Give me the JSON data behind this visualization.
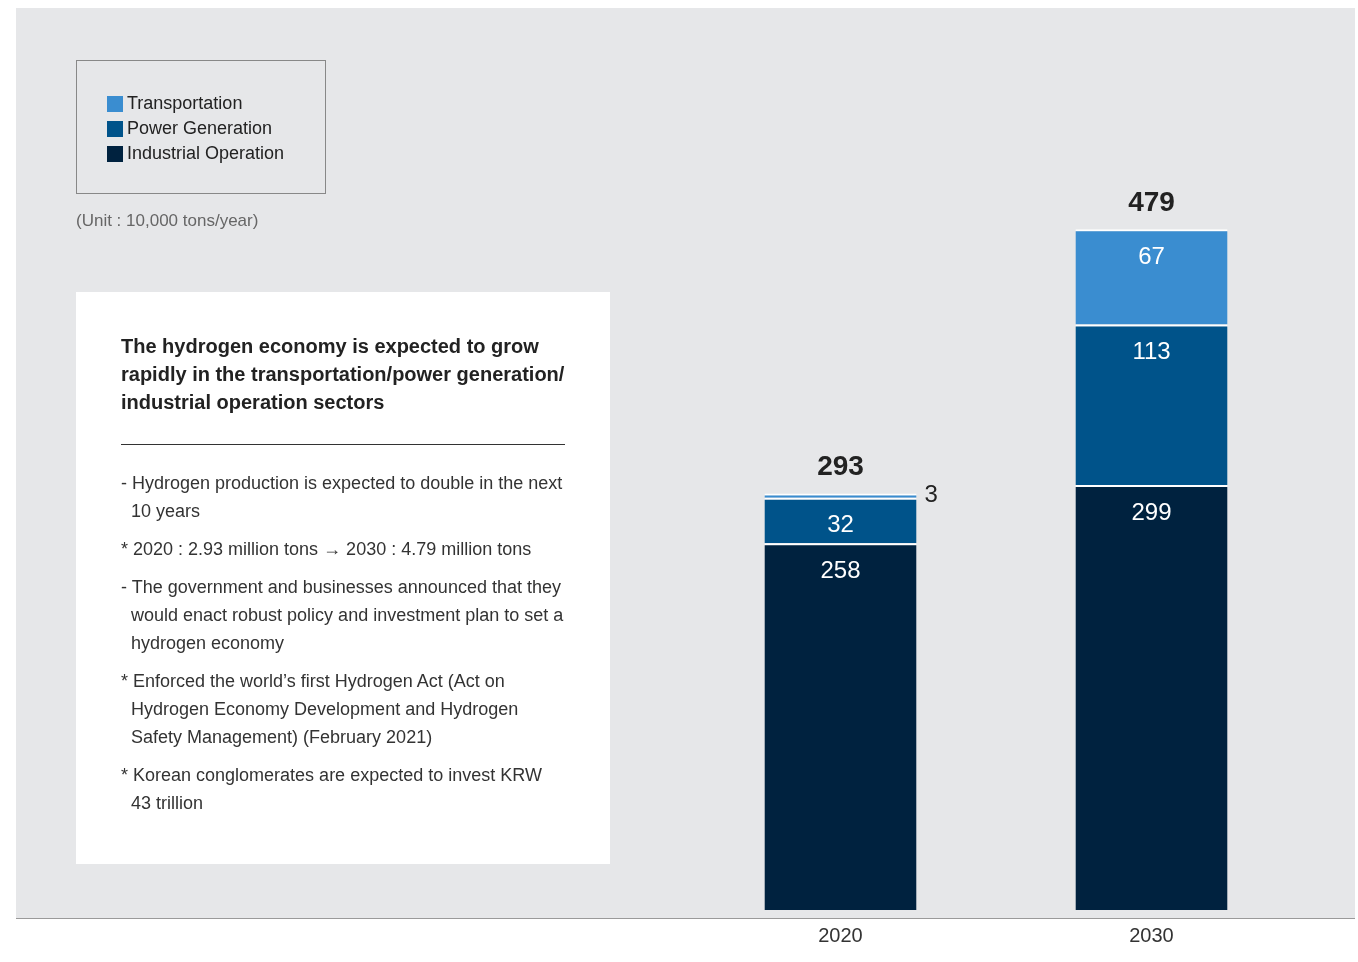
{
  "chart_data": {
    "type": "bar",
    "stacked": true,
    "title": "The hydrogen economy is expected to grow rapidly in the transportation/power generation/ industrial operation sectors",
    "categories": [
      "2020",
      "2030"
    ],
    "series": [
      {
        "name": "Industrial Operation",
        "color": "#00223f",
        "values": [
          258,
          299
        ]
      },
      {
        "name": "Power Generation",
        "color": "#00538a",
        "values": [
          32,
          113
        ]
      },
      {
        "name": "Transportation",
        "color": "#3a8dd0",
        "values": [
          3,
          67
        ]
      }
    ],
    "data_labels": true,
    "totals": [
      "293",
      "479"
    ],
    "legend": "top left",
    "annotations": [
      "(Unit : 10,000 tons/year)",
      "- Hydrogen production is expected to double in the next 10 years",
      "* 2020 : 2.93 million tons → 2030 : 4.79 million tons",
      "- The government and businesses announced that they would enact robust policy and investment plan to set a hydrogen economy",
      "* Enforced the world’s first Hydrogen Act (Act on Hydrogen Economy Development and Hydrogen Safety Management) (February 2021)",
      "* Korean conglomerates are expected to invest KRW 43 trillion"
    ]
  }
}
